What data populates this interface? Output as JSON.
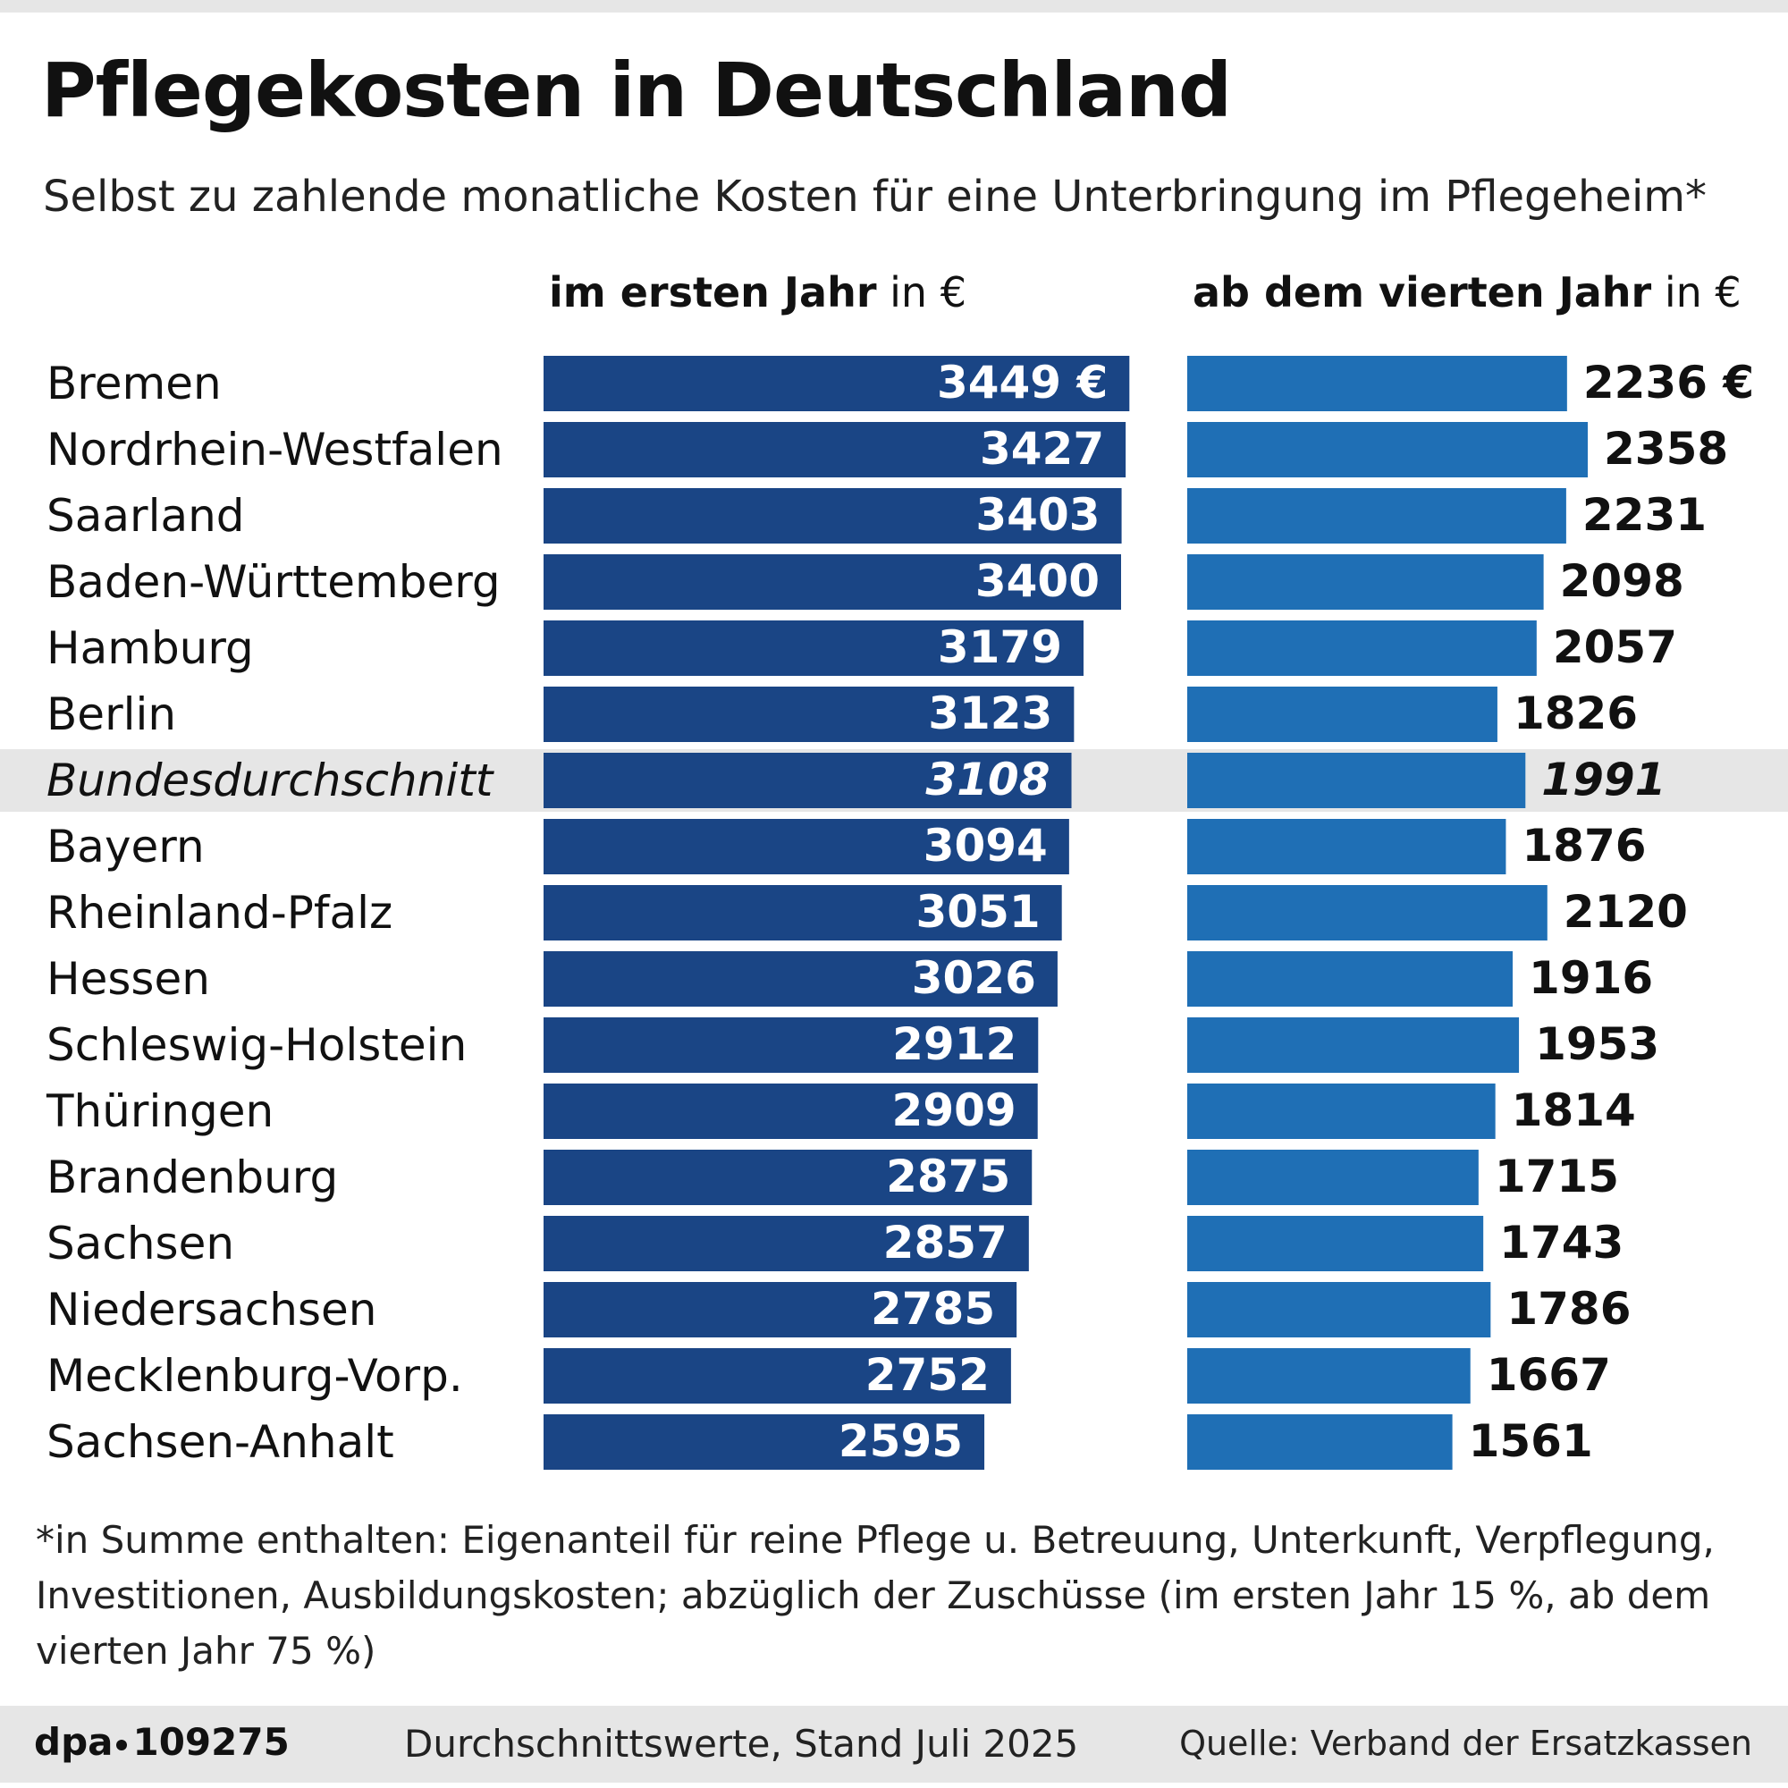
{
  "title": "Pflegekosten in Deutschland",
  "subtitle": "Selbst zu zahlende monatliche Kosten für eine Unterbringung im Pflegeheim*",
  "chart_data": {
    "type": "bar",
    "orientation": "horizontal",
    "title": "Pflegekosten in Deutschland",
    "subtitle": "Selbst zu zahlende monatliche Kosten für eine Unterbringung im Pflegeheim*",
    "unit": "€",
    "highlight_category": "Bundesdurchschnitt",
    "categories": [
      "Bremen",
      "Nordrhein-Westfalen",
      "Saarland",
      "Baden-Württemberg",
      "Hamburg",
      "Berlin",
      "Bundesdurchschnitt",
      "Bayern",
      "Rheinland-Pfalz",
      "Hessen",
      "Schleswig-Holstein",
      "Thüringen",
      "Brandenburg",
      "Sachsen",
      "Niedersachsen",
      "Mecklenburg-Vorp.",
      "Sachsen-Anhalt"
    ],
    "series": [
      {
        "name": "im ersten Jahr",
        "header_bold": "im ersten Jahr",
        "header_unit": "in €",
        "color": "#1a4585",
        "first_label_suffix": " €",
        "values": [
          3449,
          3427,
          3403,
          3400,
          3179,
          3123,
          3108,
          3094,
          3051,
          3026,
          2912,
          2909,
          2875,
          2857,
          2785,
          2752,
          2595
        ]
      },
      {
        "name": "ab dem vierten Jahr",
        "header_bold": "ab dem vierten Jahr",
        "header_unit": "in €",
        "color": "#1f6fb5",
        "first_label_suffix": " €",
        "values": [
          2236,
          2358,
          2231,
          2098,
          2057,
          1826,
          1991,
          1876,
          2120,
          1916,
          1953,
          1814,
          1715,
          1743,
          1786,
          1667,
          1561
        ]
      }
    ]
  },
  "footnote": "*in Summe enthalten: Eigenanteil für reine Pflege u. Betreuung, Unterkunft, Verpflegung, Investitionen, Ausbildungskosten; abzüglich der Zuschüsse (im ersten Jahr 15 %, ab dem vierten Jahr 75 %)",
  "footer": {
    "agency_prefix": "dpa",
    "agency_number": "109275",
    "stand": "Durchschnittswerte, Stand Juli 2025",
    "source": "Quelle: Verband der Ersatzkassen"
  }
}
